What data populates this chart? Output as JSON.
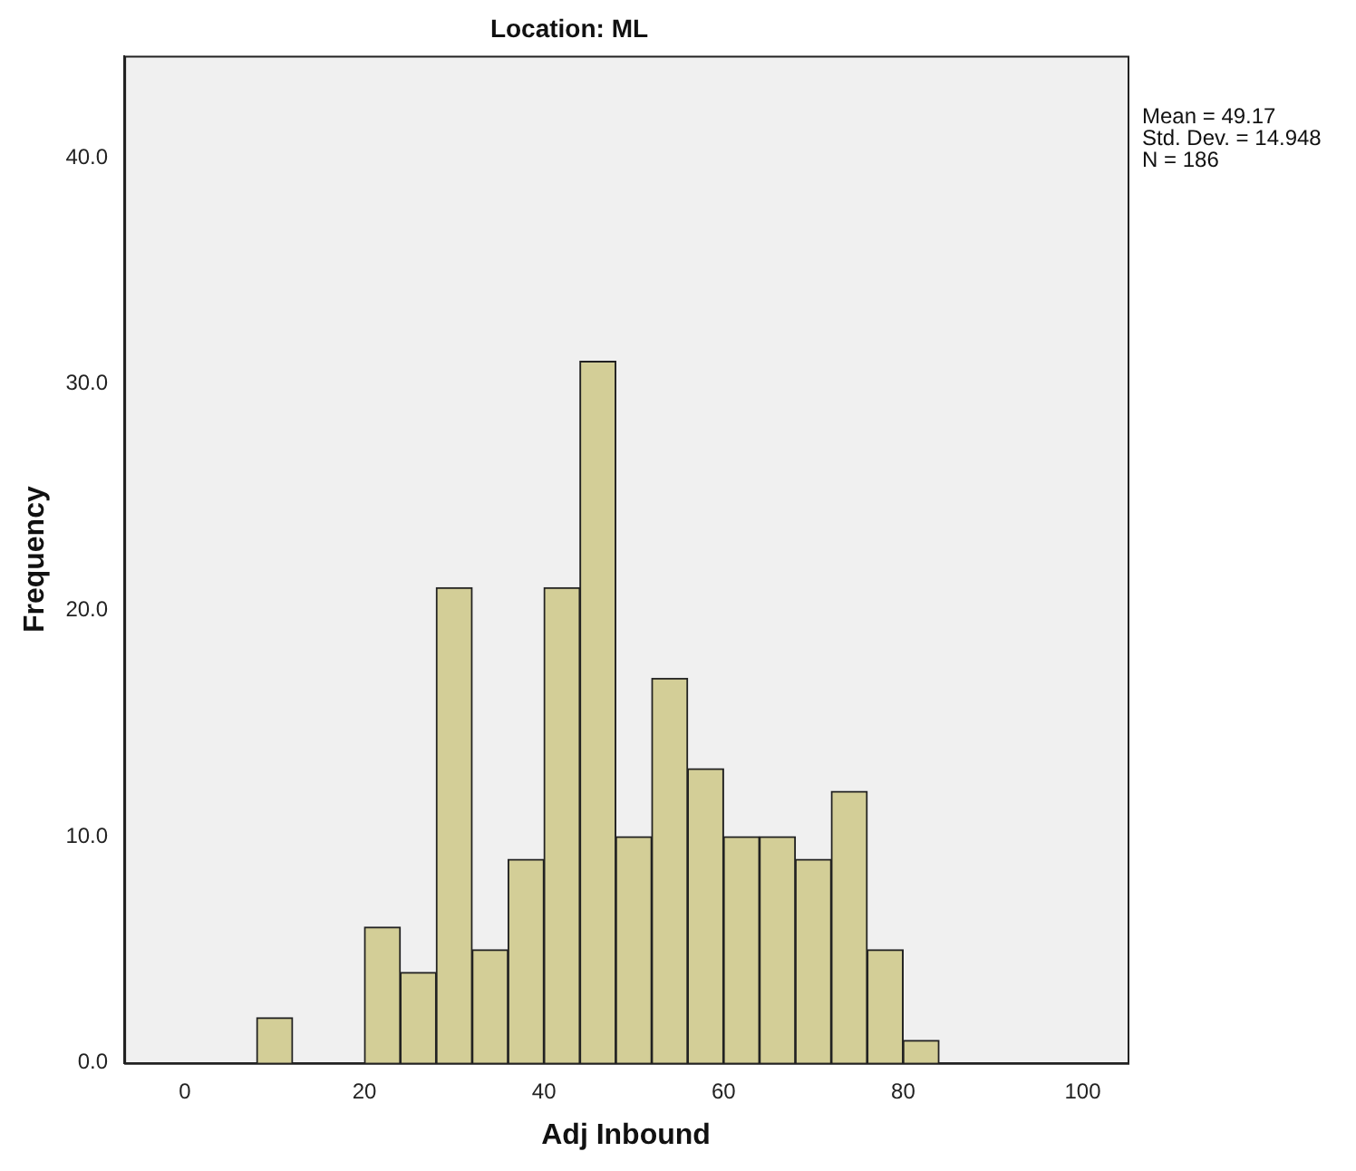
{
  "chart_data": {
    "type": "histogram",
    "title": "Location: ML",
    "xlabel": "Adj Inbound",
    "ylabel": "Frequency",
    "bins": [
      8,
      12,
      16,
      20,
      24,
      28,
      32,
      36,
      40,
      44,
      48,
      52,
      56,
      60,
      64,
      68,
      72,
      76,
      80,
      84
    ],
    "values": [
      2,
      0,
      0,
      6,
      4,
      21,
      5,
      9,
      21,
      31,
      10,
      17,
      13,
      10,
      10,
      9,
      12,
      5,
      1
    ],
    "color": "#d3ce97",
    "xlim": [
      -6.75,
      105
    ],
    "xticks": [
      0,
      20,
      40,
      60,
      80,
      100
    ],
    "ylim": [
      0,
      44.5
    ],
    "yticks": [
      {
        "value": 0,
        "label": "0.0"
      },
      {
        "value": 10,
        "label": "10.0"
      },
      {
        "value": 20,
        "label": "20.0"
      },
      {
        "value": 30,
        "label": "30.0"
      },
      {
        "value": 40,
        "label": "40.0"
      }
    ],
    "annotations": [
      "Mean = 49.17",
      "Std. Dev. = 14.948",
      "N = 186"
    ],
    "grid": false,
    "legend": false
  }
}
